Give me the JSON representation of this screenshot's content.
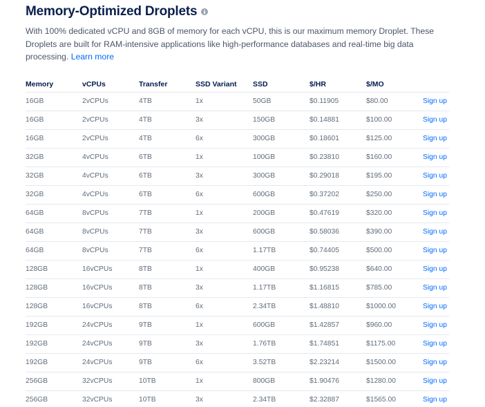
{
  "header": {
    "title": "Memory-Optimized Droplets",
    "description": "With 100% dedicated vCPU and 8GB of memory for each vCPU, this is our maximum memory Droplet. These Droplets are built for RAM-intensive applications like high-performance databases and real-time big data processing.",
    "learn_more": "Learn more"
  },
  "table": {
    "columns": [
      "Memory",
      "vCPUs",
      "Transfer",
      "SSD Variant",
      "SSD",
      "$/HR",
      "$/MO",
      ""
    ],
    "rows": [
      [
        "16GB",
        "2vCPUs",
        "4TB",
        "1x",
        "50GB",
        "$0.11905",
        "$80.00",
        "Sign up"
      ],
      [
        "16GB",
        "2vCPUs",
        "4TB",
        "3x",
        "150GB",
        "$0.14881",
        "$100.00",
        "Sign up"
      ],
      [
        "16GB",
        "2vCPUs",
        "4TB",
        "6x",
        "300GB",
        "$0.18601",
        "$125.00",
        "Sign up"
      ],
      [
        "32GB",
        "4vCPUs",
        "6TB",
        "1x",
        "100GB",
        "$0.23810",
        "$160.00",
        "Sign up"
      ],
      [
        "32GB",
        "4vCPUs",
        "6TB",
        "3x",
        "300GB",
        "$0.29018",
        "$195.00",
        "Sign up"
      ],
      [
        "32GB",
        "4vCPUs",
        "6TB",
        "6x",
        "600GB",
        "$0.37202",
        "$250.00",
        "Sign up"
      ],
      [
        "64GB",
        "8vCPUs",
        "7TB",
        "1x",
        "200GB",
        "$0.47619",
        "$320.00",
        "Sign up"
      ],
      [
        "64GB",
        "8vCPUs",
        "7TB",
        "3x",
        "600GB",
        "$0.58036",
        "$390.00",
        "Sign up"
      ],
      [
        "64GB",
        "8vCPUs",
        "7TB",
        "6x",
        "1.17TB",
        "$0.74405",
        "$500.00",
        "Sign up"
      ],
      [
        "128GB",
        "16vCPUs",
        "8TB",
        "1x",
        "400GB",
        "$0.95238",
        "$640.00",
        "Sign up"
      ],
      [
        "128GB",
        "16vCPUs",
        "8TB",
        "3x",
        "1.17TB",
        "$1.16815",
        "$785.00",
        "Sign up"
      ],
      [
        "128GB",
        "16vCPUs",
        "8TB",
        "6x",
        "2.34TB",
        "$1.48810",
        "$1000.00",
        "Sign up"
      ],
      [
        "192GB",
        "24vCPUs",
        "9TB",
        "1x",
        "600GB",
        "$1.42857",
        "$960.00",
        "Sign up"
      ],
      [
        "192GB",
        "24vCPUs",
        "9TB",
        "3x",
        "1.76TB",
        "$1.74851",
        "$1175.00",
        "Sign up"
      ],
      [
        "192GB",
        "24vCPUs",
        "9TB",
        "6x",
        "3.52TB",
        "$2.23214",
        "$1500.00",
        "Sign up"
      ],
      [
        "256GB",
        "32vCPUs",
        "10TB",
        "1x",
        "800GB",
        "$1.90476",
        "$1280.00",
        "Sign up"
      ],
      [
        "256GB",
        "32vCPUs",
        "10TB",
        "3x",
        "2.34TB",
        "$2.32887",
        "$1565.00",
        "Sign up"
      ]
    ]
  },
  "colors": {
    "link": "#0069ff",
    "heading": "#031b4e",
    "body_text": "#4a5568",
    "cell_text": "#5f6b7a",
    "divider": "#e5e8ed"
  },
  "icons": {
    "title_info": "info-icon"
  }
}
